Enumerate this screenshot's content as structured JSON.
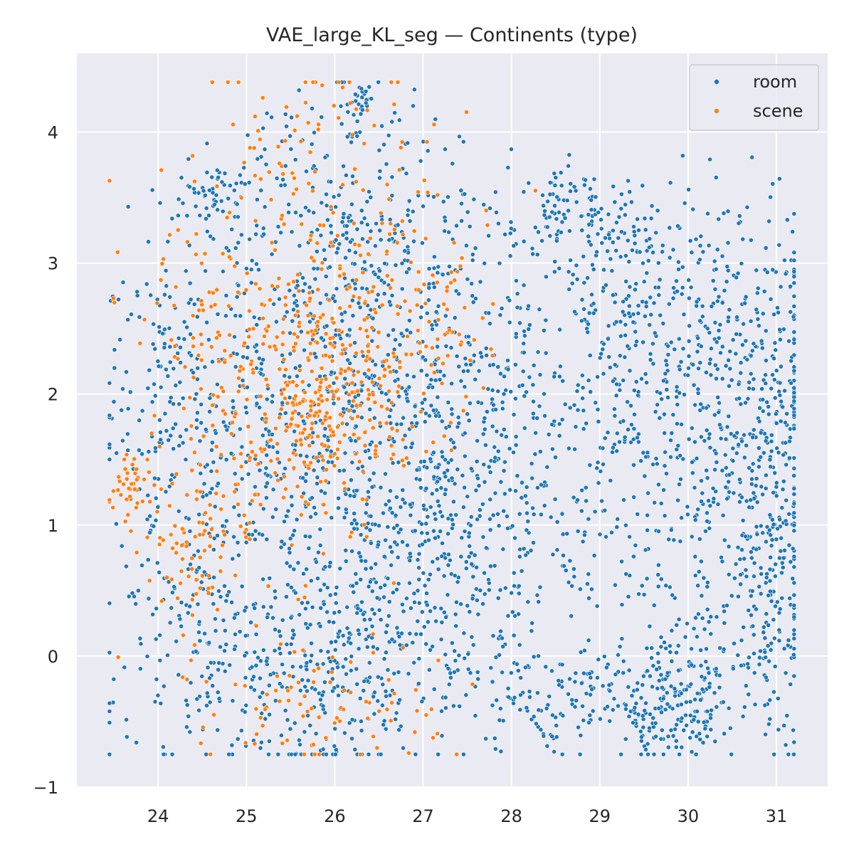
{
  "chart_data": {
    "type": "scatter",
    "title": "VAE_large_KL_seg — Continents (type)",
    "xlabel": "",
    "ylabel": "",
    "xlim": [
      23.08,
      31.58
    ],
    "ylim": [
      -1.0,
      4.6
    ],
    "xticks": [
      24,
      25,
      26,
      27,
      28,
      29,
      30,
      31
    ],
    "yticks": [
      -1,
      0,
      1,
      2,
      3,
      4
    ],
    "grid": true,
    "legend": {
      "position": "top-right",
      "entries": [
        "room",
        "scene"
      ]
    },
    "colors": {
      "room": "#1f77b4",
      "scene": "#ff7f0e",
      "background": "#eaeaf2",
      "grid": "#ffffff"
    },
    "series": [
      {
        "name": "room",
        "color": "#1f77b4",
        "clusters": [
          {
            "cx": 26.2,
            "cy": 1.9,
            "sx": 0.9,
            "sy": 0.8,
            "n": 650
          },
          {
            "cx": 26.2,
            "cy": 3.4,
            "sx": 0.8,
            "sy": 0.45,
            "n": 240
          },
          {
            "cx": 26.3,
            "cy": 4.25,
            "sx": 0.08,
            "sy": 0.06,
            "n": 25
          },
          {
            "cx": 24.6,
            "cy": 3.5,
            "sx": 0.2,
            "sy": 0.12,
            "n": 40
          },
          {
            "cx": 24.3,
            "cy": 2.0,
            "sx": 0.45,
            "sy": 0.7,
            "n": 200
          },
          {
            "cx": 24.5,
            "cy": 0.6,
            "sx": 0.5,
            "sy": 0.6,
            "n": 160
          },
          {
            "cx": 25.8,
            "cy": -0.2,
            "sx": 0.9,
            "sy": 0.35,
            "n": 300
          },
          {
            "cx": 26.5,
            "cy": 0.6,
            "sx": 0.6,
            "sy": 0.5,
            "n": 180
          },
          {
            "cx": 27.6,
            "cy": 1.8,
            "sx": 0.6,
            "sy": 0.7,
            "n": 260
          },
          {
            "cx": 27.7,
            "cy": 0.5,
            "sx": 0.5,
            "sy": 0.6,
            "n": 120
          },
          {
            "cx": 28.5,
            "cy": 3.4,
            "sx": 0.3,
            "sy": 0.15,
            "n": 60
          },
          {
            "cx": 29.3,
            "cy": 3.1,
            "sx": 0.5,
            "sy": 0.25,
            "n": 140
          },
          {
            "cx": 30.3,
            "cy": 2.6,
            "sx": 0.6,
            "sy": 0.5,
            "n": 200
          },
          {
            "cx": 30.6,
            "cy": 1.5,
            "sx": 0.45,
            "sy": 0.7,
            "n": 300
          },
          {
            "cx": 29.2,
            "cy": 1.3,
            "sx": 0.5,
            "sy": 0.6,
            "n": 160
          },
          {
            "cx": 29.8,
            "cy": -0.4,
            "sx": 0.3,
            "sy": 0.2,
            "n": 140
          },
          {
            "cx": 30.5,
            "cy": 0.1,
            "sx": 0.5,
            "sy": 0.35,
            "n": 130
          },
          {
            "cx": 28.8,
            "cy": -0.3,
            "sx": 0.7,
            "sy": 0.2,
            "n": 150
          },
          {
            "cx": 31.0,
            "cy": 1.3,
            "sx": 0.15,
            "sy": 0.9,
            "n": 150
          },
          {
            "cx": 29.2,
            "cy": 2.3,
            "sx": 0.4,
            "sy": 0.4,
            "n": 90
          },
          {
            "cx": 23.5,
            "cy": 2.74,
            "sx": 0.02,
            "sy": 0.02,
            "n": 4
          }
        ]
      },
      {
        "name": "scene",
        "color": "#ff7f0e",
        "clusters": [
          {
            "cx": 26.0,
            "cy": 2.1,
            "sx": 0.55,
            "sy": 0.35,
            "n": 250
          },
          {
            "cx": 25.5,
            "cy": 1.6,
            "sx": 0.5,
            "sy": 0.5,
            "n": 110
          },
          {
            "cx": 24.4,
            "cy": 0.9,
            "sx": 0.25,
            "sy": 0.3,
            "n": 80
          },
          {
            "cx": 23.7,
            "cy": 1.3,
            "sx": 0.15,
            "sy": 0.15,
            "n": 45
          },
          {
            "cx": 25.8,
            "cy": 3.5,
            "sx": 0.8,
            "sy": 0.5,
            "n": 130
          },
          {
            "cx": 26.7,
            "cy": 2.6,
            "sx": 0.5,
            "sy": 0.5,
            "n": 70
          },
          {
            "cx": 25.7,
            "cy": -0.3,
            "sx": 0.8,
            "sy": 0.3,
            "n": 90
          },
          {
            "cx": 24.8,
            "cy": 2.4,
            "sx": 0.5,
            "sy": 0.5,
            "n": 90
          },
          {
            "cx": 27.4,
            "cy": 2.5,
            "sx": 0.3,
            "sy": 0.3,
            "n": 20
          },
          {
            "cx": 23.52,
            "cy": 2.73,
            "sx": 0.02,
            "sy": 0.02,
            "n": 3
          }
        ]
      }
    ]
  }
}
